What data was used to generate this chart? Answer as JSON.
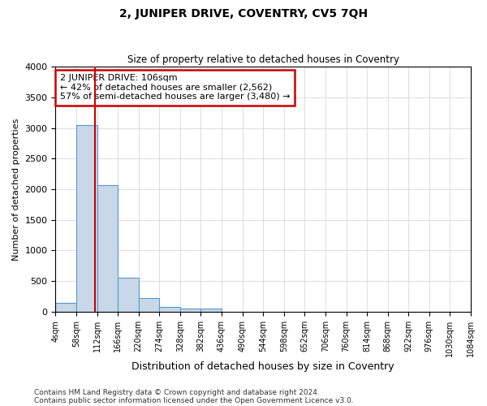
{
  "title": "2, JUNIPER DRIVE, COVENTRY, CV5 7QH",
  "subtitle": "Size of property relative to detached houses in Coventry",
  "xlabel": "Distribution of detached houses by size in Coventry",
  "ylabel": "Number of detached properties",
  "bin_edges": [
    4,
    58,
    112,
    166,
    220,
    274,
    328,
    382,
    436,
    490,
    544,
    598,
    652,
    706,
    760,
    814,
    868,
    922,
    976,
    1030,
    1084
  ],
  "bar_heights": [
    150,
    3050,
    2070,
    550,
    220,
    75,
    50,
    50,
    0,
    0,
    0,
    0,
    0,
    0,
    0,
    0,
    0,
    0,
    0,
    0
  ],
  "bar_color": "#c8d8e8",
  "bar_edge_color": "#5599cc",
  "property_size": 106,
  "property_line_color": "#cc0000",
  "annotation_line1": "2 JUNIPER DRIVE: 106sqm",
  "annotation_line2": "← 42% of detached houses are smaller (2,562)",
  "annotation_line3": "57% of semi-detached houses are larger (3,480) →",
  "annotation_box_color": "#cc0000",
  "ylim": [
    0,
    4000
  ],
  "yticks": [
    0,
    500,
    1000,
    1500,
    2000,
    2500,
    3000,
    3500,
    4000
  ],
  "footer_line1": "Contains HM Land Registry data © Crown copyright and database right 2024.",
  "footer_line2": "Contains public sector information licensed under the Open Government Licence v3.0.",
  "background_color": "#ffffff",
  "grid_color": "#d0d0d0"
}
